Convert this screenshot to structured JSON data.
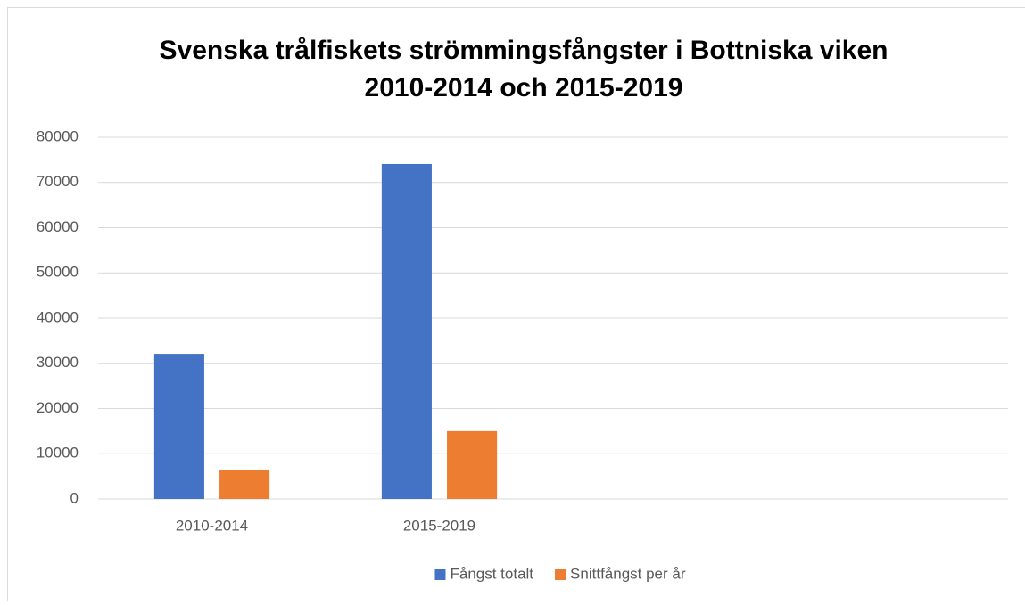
{
  "chart_data": {
    "type": "bar",
    "title": [
      "Svenska trålfiskets strömmingsfångster i Bottniska viken",
      "2010-2014 och 2015-2019"
    ],
    "categories": [
      "2010-2014",
      "2015-2019",
      null,
      null
    ],
    "series": [
      {
        "name": "Fångst totalt",
        "color": "#4472c4",
        "values": [
          32100,
          74100,
          null,
          null
        ]
      },
      {
        "name": "Snittfångst per år",
        "color": "#ed7d31",
        "values": [
          6500,
          15000,
          null,
          null
        ]
      }
    ],
    "ylim": [
      0,
      80000
    ],
    "yticks": [
      0,
      10000,
      20000,
      30000,
      40000,
      50000,
      60000,
      70000,
      80000
    ],
    "grid": true,
    "legend": "bottom"
  }
}
